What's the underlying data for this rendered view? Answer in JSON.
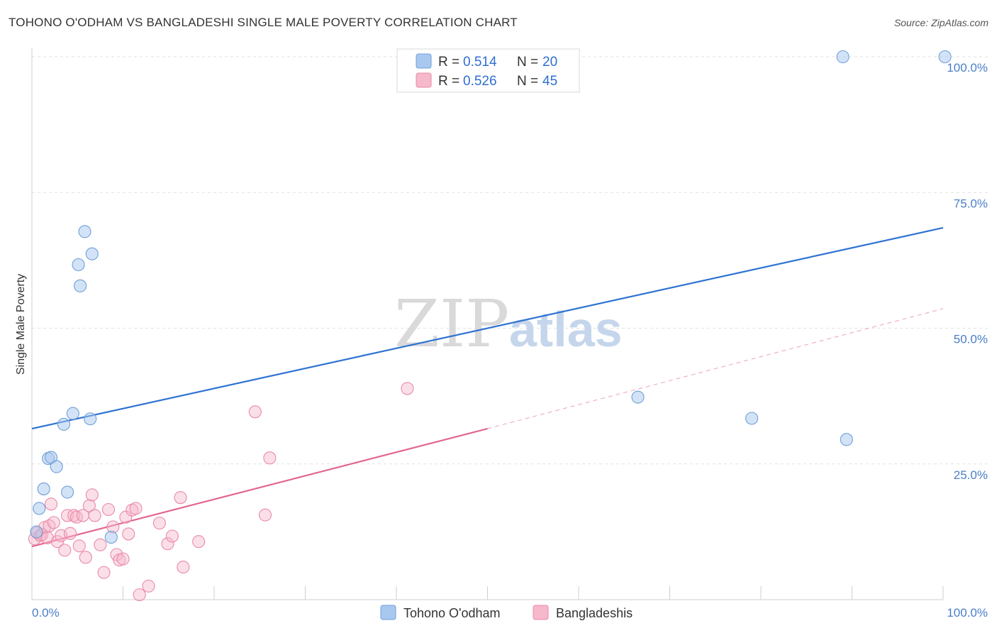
{
  "header": {
    "title": "TOHONO O'ODHAM VS BANGLADESHI SINGLE MALE POVERTY CORRELATION CHART",
    "source": "Source: ZipAtlas.com"
  },
  "watermark": {
    "part1": "ZIP",
    "part2": "atlas"
  },
  "colors": {
    "blue": "#a8c8f0",
    "blue_stroke": "#6f9fd8",
    "blue_line": "#2e72d2",
    "pink": "#f6b8cb",
    "pink_stroke": "#e98aa8",
    "pink_line": "#e2668f"
  },
  "chart_data": {
    "type": "scatter",
    "title": "TOHONO O'ODHAM VS BANGLADESHI SINGLE MALE POVERTY CORRELATION CHART",
    "xlabel": "",
    "ylabel": "Single Male Poverty",
    "xlim": [
      0,
      100
    ],
    "ylim": [
      0,
      100
    ],
    "x_tick_labels": [
      "0.0%",
      "100.0%"
    ],
    "y_ticks": [
      25,
      50,
      75,
      100
    ],
    "y_tick_labels": [
      "25.0%",
      "50.0%",
      "75.0%",
      "100.0%"
    ],
    "legend": [
      {
        "r_label": "R =",
        "r_value": "0.514",
        "n_label": "N =",
        "n_value": "20"
      },
      {
        "r_label": "R =",
        "r_value": "0.526",
        "n_label": "N =",
        "n_value": "45"
      }
    ],
    "series": [
      {
        "name": "Tohono O'odham",
        "color": "#a8c8f0",
        "points": [
          [
            0.5,
            12.5
          ],
          [
            0.8,
            16.8
          ],
          [
            1.3,
            20.4
          ],
          [
            1.8,
            26
          ],
          [
            2.1,
            26.2
          ],
          [
            2.7,
            24.5
          ],
          [
            3.5,
            32.3
          ],
          [
            3.9,
            19.8
          ],
          [
            4.5,
            34.3
          ],
          [
            5.1,
            61.7
          ],
          [
            5.3,
            57.8
          ],
          [
            5.8,
            67.8
          ],
          [
            6.4,
            33.3
          ],
          [
            6.6,
            63.7
          ],
          [
            8.7,
            11.5
          ],
          [
            66.5,
            37.3
          ],
          [
            79,
            33.4
          ],
          [
            89,
            100
          ],
          [
            89.4,
            29.5
          ],
          [
            100.2,
            100
          ]
        ],
        "trend": {
          "x0": 0,
          "y0": 31.5,
          "x1": 100,
          "y1": 68.5
        }
      },
      {
        "name": "Bangladeshis",
        "color": "#f6b8cb",
        "points": [
          [
            0.3,
            11.2
          ],
          [
            0.6,
            12.3
          ],
          [
            0.9,
            11.8
          ],
          [
            1.1,
            12
          ],
          [
            1.4,
            13.3
          ],
          [
            1.7,
            11.4
          ],
          [
            1.9,
            13.6
          ],
          [
            2.1,
            17.6
          ],
          [
            2.4,
            14.2
          ],
          [
            2.8,
            10.7
          ],
          [
            3.2,
            11.8
          ],
          [
            3.6,
            9.1
          ],
          [
            3.9,
            15.5
          ],
          [
            4.2,
            12.2
          ],
          [
            4.6,
            15.5
          ],
          [
            4.9,
            15.2
          ],
          [
            5.2,
            9.9
          ],
          [
            5.6,
            15.5
          ],
          [
            5.9,
            7.8
          ],
          [
            6.3,
            17.3
          ],
          [
            6.6,
            19.3
          ],
          [
            6.9,
            15.5
          ],
          [
            7.5,
            10.1
          ],
          [
            7.9,
            5
          ],
          [
            8.4,
            16.6
          ],
          [
            8.9,
            13.4
          ],
          [
            9.3,
            8.3
          ],
          [
            9.6,
            7.3
          ],
          [
            10,
            7.5
          ],
          [
            10.3,
            15.2
          ],
          [
            10.6,
            12.1
          ],
          [
            11,
            16.5
          ],
          [
            11.4,
            16.8
          ],
          [
            11.8,
            0.9
          ],
          [
            12.8,
            2.5
          ],
          [
            14,
            14.1
          ],
          [
            14.9,
            10.3
          ],
          [
            15.4,
            11.7
          ],
          [
            16.3,
            18.8
          ],
          [
            16.6,
            6
          ],
          [
            18.3,
            10.7
          ],
          [
            24.5,
            34.6
          ],
          [
            25.6,
            15.6
          ],
          [
            26.1,
            26.1
          ],
          [
            41.2,
            38.9
          ]
        ],
        "trend": {
          "x0": 0,
          "y0": 9.8,
          "x1": 50,
          "y1": 31.5
        },
        "trend_extension": {
          "x0": 50,
          "y0": 31.5,
          "x1": 100,
          "y1": 53.6
        }
      }
    ]
  }
}
